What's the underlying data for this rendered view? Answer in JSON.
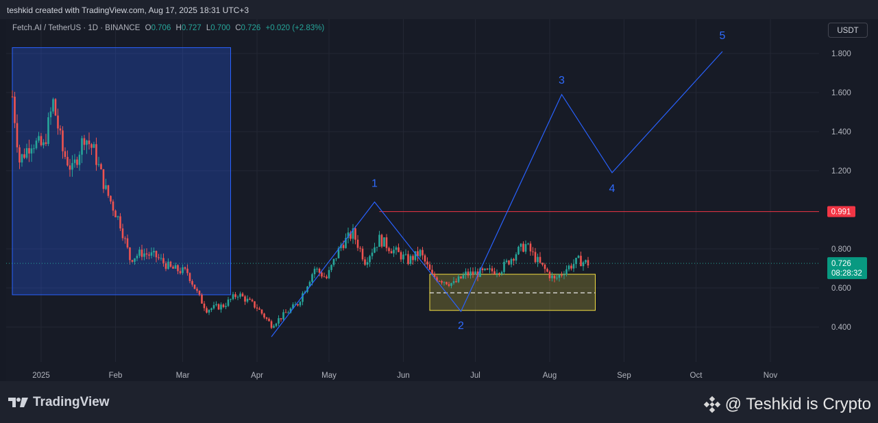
{
  "header": {
    "credit": "teshkid created with TradingView.com, Aug 17, 2025 18:31 UTC+3"
  },
  "legend": {
    "symbol": "Fetch.AI / TetherUS · 1D · BINANCE",
    "open_label": "O",
    "open": "0.706",
    "high_label": "H",
    "high": "0.727",
    "low_label": "L",
    "low": "0.700",
    "close_label": "C",
    "close": "0.726",
    "change": "+0.020 (+2.83%)"
  },
  "currency_button": "USDT",
  "footer": {
    "logo_text": "TradingView",
    "watermark": "@ Teshkid is Crypto"
  },
  "colors": {
    "up": "#26a69a",
    "down": "#ef5350",
    "wave": "#2962ff",
    "resistance": "#f23645",
    "zone": "#f5e042",
    "box": "#2962ff"
  },
  "chart_data": {
    "type": "candlestick",
    "symbol": "Fetch.AI / TetherUS",
    "interval": "1D",
    "exchange": "BINANCE",
    "y_axis": {
      "ticks": [
        "0.400",
        "0.600",
        "0.800",
        "1.200",
        "1.400",
        "1.600",
        "1.800"
      ],
      "range": [
        0.25,
        1.95
      ]
    },
    "x_axis": {
      "ticks": [
        "2025",
        "Feb",
        "Mar",
        "Apr",
        "May",
        "Jun",
        "Jul",
        "Aug",
        "Sep",
        "Oct",
        "Nov"
      ]
    },
    "candle_start": "2024-12-20",
    "candle_end": "2025-08-17",
    "anchors": [
      [
        "2024-12-20",
        1.58
      ],
      [
        "2024-12-23",
        1.25
      ],
      [
        "2024-12-28",
        1.35
      ],
      [
        "2025-01-02",
        1.32
      ],
      [
        "2025-01-06",
        1.55
      ],
      [
        "2025-01-10",
        1.3
      ],
      [
        "2025-01-14",
        1.2
      ],
      [
        "2025-01-19",
        1.38
      ],
      [
        "2025-01-23",
        1.3
      ],
      [
        "2025-01-28",
        1.1
      ],
      [
        "2025-02-03",
        0.93
      ],
      [
        "2025-02-07",
        0.75
      ],
      [
        "2025-02-12",
        0.78
      ],
      [
        "2025-02-18",
        0.76
      ],
      [
        "2025-02-24",
        0.7
      ],
      [
        "2025-03-03",
        0.68
      ],
      [
        "2025-03-08",
        0.55
      ],
      [
        "2025-03-11",
        0.49
      ],
      [
        "2025-03-18",
        0.51
      ],
      [
        "2025-03-24",
        0.57
      ],
      [
        "2025-04-01",
        0.5
      ],
      [
        "2025-04-07",
        0.41
      ],
      [
        "2025-04-12",
        0.46
      ],
      [
        "2025-04-18",
        0.52
      ],
      [
        "2025-04-25",
        0.7
      ],
      [
        "2025-04-30",
        0.65
      ],
      [
        "2025-05-06",
        0.82
      ],
      [
        "2025-05-11",
        0.88
      ],
      [
        "2025-05-16",
        0.74
      ],
      [
        "2025-05-22",
        0.85
      ],
      [
        "2025-05-27",
        0.8
      ],
      [
        "2025-06-03",
        0.74
      ],
      [
        "2025-06-08",
        0.78
      ],
      [
        "2025-06-13",
        0.66
      ],
      [
        "2025-06-22",
        0.62
      ],
      [
        "2025-06-27",
        0.67
      ],
      [
        "2025-07-06",
        0.68
      ],
      [
        "2025-07-12",
        0.7
      ],
      [
        "2025-07-18",
        0.78
      ],
      [
        "2025-07-22",
        0.82
      ],
      [
        "2025-07-28",
        0.72
      ],
      [
        "2025-08-03",
        0.64
      ],
      [
        "2025-08-08",
        0.7
      ],
      [
        "2025-08-13",
        0.74
      ],
      [
        "2025-08-17",
        0.726
      ]
    ],
    "resistance": {
      "value": 0.991,
      "label": "0.991",
      "from": "2025-05-22"
    },
    "last_price": {
      "value": 0.726,
      "label": "0.726",
      "countdown": "08:28:32"
    },
    "wave_path": [
      {
        "label": "",
        "date": "2025-04-07",
        "value": 0.35
      },
      {
        "label": "1",
        "date": "2025-05-20",
        "value": 1.04
      },
      {
        "label": "2",
        "date": "2025-06-25",
        "value": 0.48
      },
      {
        "label": "3",
        "date": "2025-08-06",
        "value": 1.59
      },
      {
        "label": "4",
        "date": "2025-08-27",
        "value": 1.19
      },
      {
        "label": "5",
        "date": "2025-10-12",
        "value": 1.81
      }
    ],
    "highlight_box": {
      "from": "2024-12-20",
      "to": "2025-03-21",
      "high": 1.83,
      "low": 0.565
    },
    "accumulation_zone": {
      "from": "2025-06-12",
      "to": "2025-08-20",
      "high": 0.67,
      "low": 0.485,
      "mid": 0.575
    }
  }
}
